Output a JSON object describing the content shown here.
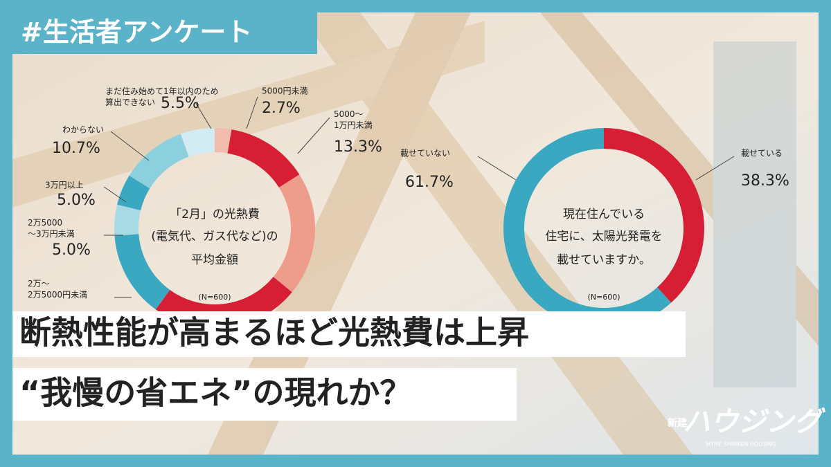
{
  "tag": "#生活者アンケート",
  "headline": [
    "断熱性能が高まるほど光熱費は上昇",
    "“我慢の省エネ”の現れか？"
  ],
  "logo": {
    "small": "新建",
    "main": "ハウジング",
    "sub": "MTHE SHINKEN HOUSING"
  },
  "chart_data": [
    {
      "type": "donut",
      "center_text": [
        "「2月」の光熱費",
        "(電気代、ガス代など)の",
        "平均金額",
        "(N=600)"
      ],
      "categories": [
        "5000円未満",
        "5000〜\n1万円未満",
        null,
        null,
        "2万〜\n2万5000円未満",
        "2万5000\n〜3万円未満",
        "3万円以上",
        "わからない",
        "まだ住み始めて1年以内のため\n算出できない"
      ],
      "values": [
        2.7,
        13.3,
        20.0,
        24.0,
        13.8,
        5.0,
        5.0,
        10.7,
        5.5
      ],
      "value_labels": [
        "2.7%",
        "13.3%",
        null,
        null,
        null,
        "5.0%",
        "5.0%",
        "10.7%",
        "5.5%"
      ],
      "colors": [
        "#f2bcae",
        "#d61f35",
        "#ee9d8d",
        "#d61f35",
        "#3aa8c1",
        "#a8dae6",
        "#3aa8c1",
        "#8ccfdd",
        "#d3ecf3"
      ]
    },
    {
      "type": "donut",
      "center_text": [
        "現在住んでいる",
        "住宅に、太陽光発電を",
        "載せていますか。",
        "(N=600)"
      ],
      "categories": [
        "載せている",
        "載せていない"
      ],
      "values": [
        38.3,
        61.7
      ],
      "value_labels": [
        "38.3%",
        "61.7%"
      ],
      "colors": [
        "#d61f35",
        "#3aa8c1"
      ]
    }
  ]
}
